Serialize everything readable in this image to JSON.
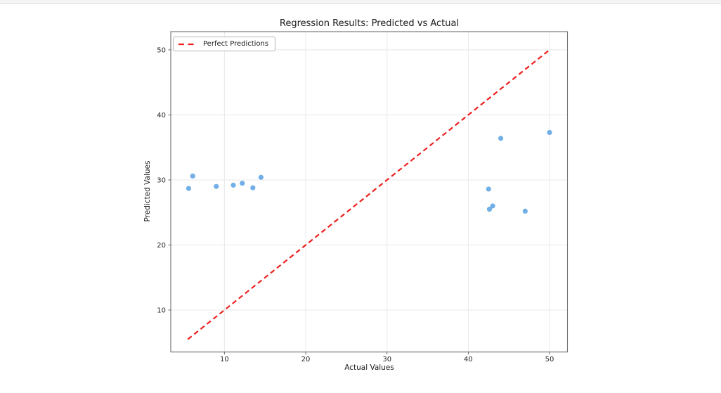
{
  "chart_data": {
    "type": "scatter",
    "title": "Regression Results: Predicted vs Actual",
    "xlabel": "Actual Values",
    "ylabel": "Predicted Values",
    "xlim": [
      3.4,
      52.2
    ],
    "ylim": [
      3.55,
      52.8
    ],
    "xticks": [
      10,
      20,
      30,
      40,
      50
    ],
    "yticks": [
      10,
      20,
      30,
      40,
      50
    ],
    "grid": true,
    "legend": {
      "position": "upper-left",
      "entries": [
        {
          "label": "Perfect Predictions",
          "marker": "dashed-line",
          "color": "#ee1f1f"
        }
      ]
    },
    "series": [
      {
        "name": "predicted-vs-actual-points",
        "kind": "scatter",
        "color": "#4d9be0",
        "opacity": 0.8,
        "points": [
          [
            5.6,
            28.7
          ],
          [
            6.1,
            30.6
          ],
          [
            9.0,
            29.0
          ],
          [
            11.1,
            29.2
          ],
          [
            12.2,
            29.5
          ],
          [
            13.5,
            28.8
          ],
          [
            14.5,
            30.4
          ],
          [
            42.5,
            28.6
          ],
          [
            42.6,
            25.5
          ],
          [
            43.0,
            26.0
          ],
          [
            44.0,
            36.4
          ],
          [
            47.0,
            25.2
          ],
          [
            50.0,
            37.3
          ]
        ]
      },
      {
        "name": "Perfect Predictions",
        "kind": "line",
        "style": "dashed",
        "color": "#ee1f1f",
        "points": [
          [
            5.5,
            5.5
          ],
          [
            50.0,
            50.0
          ]
        ]
      }
    ]
  },
  "colors": {
    "grid": "#e8e8e8",
    "spine": "#6e6e6e",
    "tick": "#5a5a5a",
    "tick_label": "#262626",
    "text": "#1a1a1a",
    "scatter": "#4d9be0",
    "line": "#ee1f1f",
    "top_strip_bg": "#f4f4f4",
    "top_strip_border": "#dcdcdc"
  }
}
